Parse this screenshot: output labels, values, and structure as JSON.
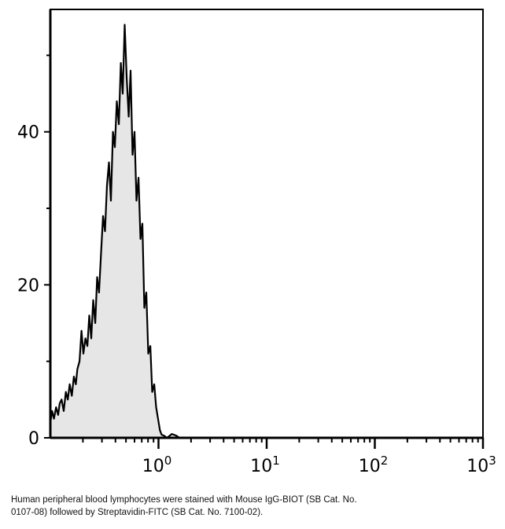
{
  "chart_data": {
    "type": "area",
    "title": "",
    "xlabel": "",
    "ylabel": "",
    "xscale": "log",
    "xlim": [
      0.1,
      1000
    ],
    "ylim": [
      0,
      56
    ],
    "grid": false,
    "fill_color": "#e6e6e6",
    "line_color": "#000000",
    "x_ticks": [
      {
        "base": "10",
        "exp": "0",
        "value": 1
      },
      {
        "base": "10",
        "exp": "1",
        "value": 10
      },
      {
        "base": "10",
        "exp": "2",
        "value": 100
      },
      {
        "base": "10",
        "exp": "3",
        "value": 1000
      }
    ],
    "y_ticks": [
      {
        "label": "0",
        "value": 0
      },
      {
        "label": "20",
        "value": 20
      },
      {
        "label": "40",
        "value": 40
      }
    ],
    "y_minor_ticks": [
      10,
      30,
      50
    ],
    "series": [
      {
        "x": [
          0.1,
          0.104,
          0.108,
          0.113,
          0.118,
          0.122,
          0.127,
          0.133,
          0.139,
          0.145,
          0.151,
          0.158,
          0.165,
          0.172,
          0.178,
          0.186,
          0.194,
          0.202,
          0.211,
          0.22,
          0.229,
          0.239,
          0.249,
          0.26,
          0.271,
          0.282,
          0.294,
          0.307,
          0.32,
          0.334,
          0.348,
          0.363,
          0.379,
          0.395,
          0.412,
          0.43,
          0.448,
          0.467,
          0.487,
          0.508,
          0.53,
          0.552,
          0.575,
          0.6,
          0.626,
          0.653,
          0.681,
          0.71,
          0.74,
          0.772,
          0.804,
          0.84,
          0.875,
          0.913,
          0.951,
          0.99,
          1.03,
          1.07,
          1.12,
          1.2,
          1.33,
          1.45,
          1.57
        ],
        "y": [
          2,
          3.5,
          2.5,
          4,
          3,
          4.5,
          5,
          3.5,
          6,
          5,
          7,
          5.5,
          8,
          7,
          9,
          10,
          14,
          11,
          13,
          12,
          16,
          13,
          18,
          15,
          21,
          19,
          24,
          29,
          27,
          33,
          36,
          31,
          40,
          38,
          44,
          41,
          49,
          45,
          54,
          47,
          42,
          48,
          37,
          40,
          31,
          34,
          26,
          28,
          17,
          19,
          11,
          12,
          6,
          7,
          4,
          2.5,
          1,
          0.4,
          0.3,
          0,
          0.5,
          0.3,
          0
        ]
      }
    ]
  },
  "caption": {
    "line1": "Human peripheral blood lymphocytes were stained with Mouse IgG-BIOT (SB Cat. No.",
    "line2": "0107-08) followed by Streptavidin-FITC (SB Cat. No. 7100-02)."
  }
}
